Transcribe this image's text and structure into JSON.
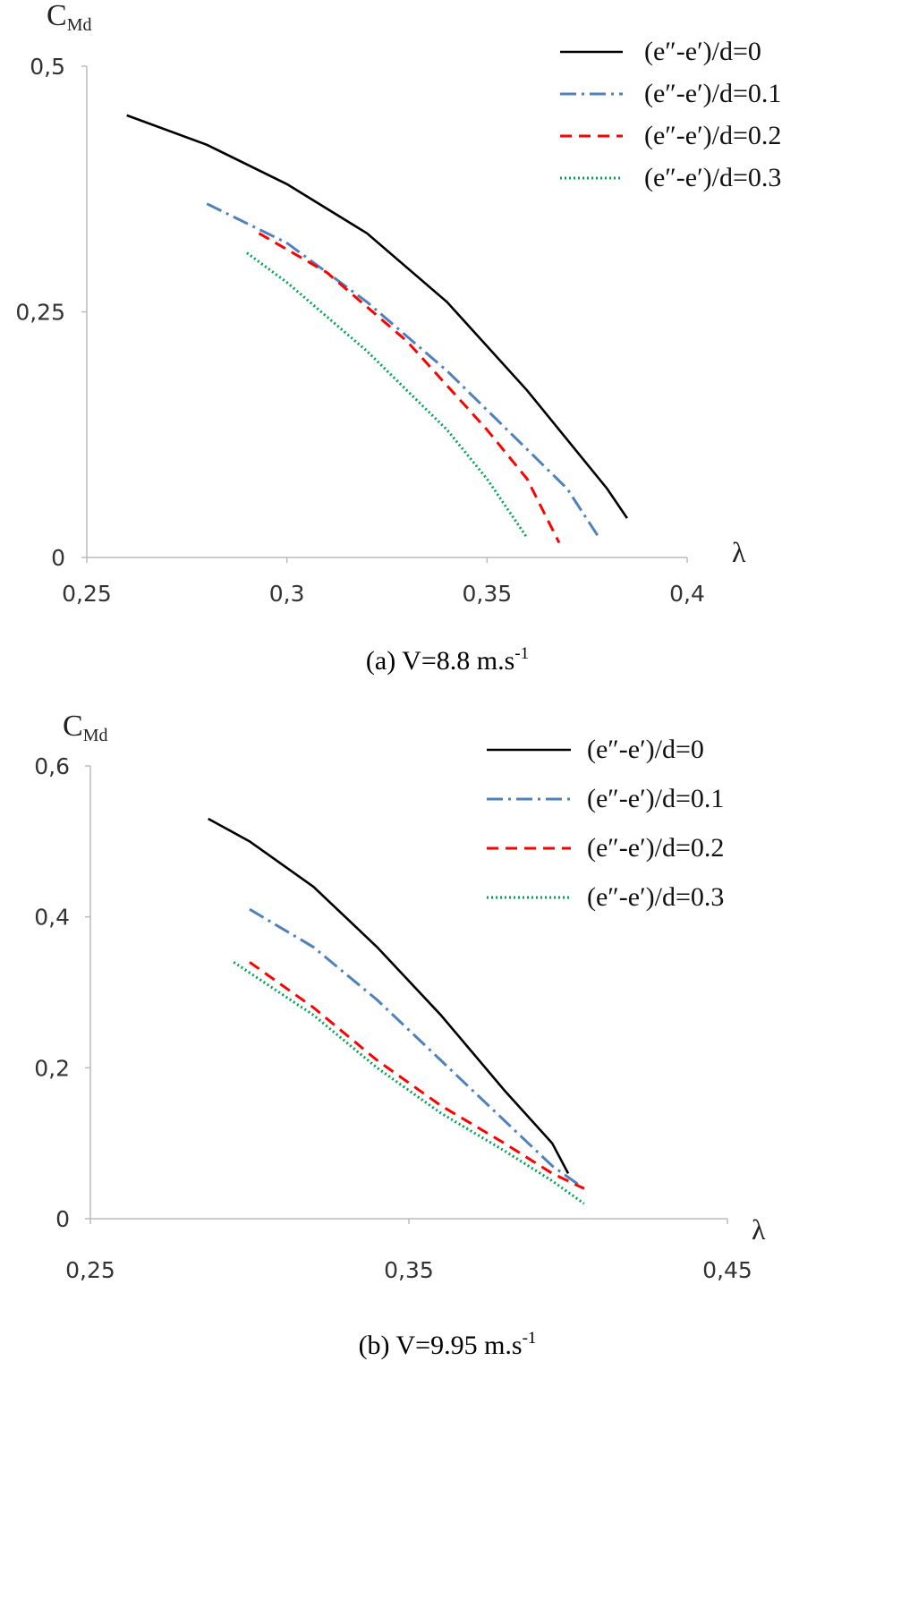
{
  "chart_data": [
    {
      "type": "line",
      "caption": "(a) V=8.8 m.s",
      "caption_sup": "-1",
      "ylabel": "C",
      "ylabel_sub": "Md",
      "xlabel": "λ",
      "xlim": [
        0.25,
        0.4
      ],
      "ylim": [
        0,
        0.5
      ],
      "xticks": [
        {
          "value": 0.25,
          "label": "0,25"
        },
        {
          "value": 0.3,
          "label": "0,3"
        },
        {
          "value": 0.35,
          "label": "0,35"
        },
        {
          "value": 0.4,
          "label": "0,4"
        }
      ],
      "yticks": [
        {
          "value": 0,
          "label": "0"
        },
        {
          "value": 0.25,
          "label": "0,25"
        },
        {
          "value": 0.5,
          "label": "0,5"
        }
      ],
      "legend_position": "top-right",
      "series": [
        {
          "name": "(e″-e′)/d=0",
          "color": "#000000",
          "dash": "solid",
          "x": [
            0.26,
            0.28,
            0.3,
            0.32,
            0.34,
            0.36,
            0.37,
            0.38,
            0.385
          ],
          "y": [
            0.45,
            0.42,
            0.38,
            0.33,
            0.26,
            0.17,
            0.12,
            0.07,
            0.04
          ]
        },
        {
          "name": "(e″-e′)/d=0.1",
          "color": "#4f81bd",
          "dash": "dashdot",
          "x": [
            0.28,
            0.3,
            0.32,
            0.34,
            0.36,
            0.37,
            0.378
          ],
          "y": [
            0.36,
            0.32,
            0.26,
            0.19,
            0.11,
            0.07,
            0.02
          ]
        },
        {
          "name": "(e″-e′)/d=0.2",
          "color": "#ff0000",
          "dash": "dash",
          "x": [
            0.293,
            0.31,
            0.33,
            0.35,
            0.36,
            0.368
          ],
          "y": [
            0.33,
            0.29,
            0.22,
            0.13,
            0.08,
            0.015
          ]
        },
        {
          "name": "(e″-e′)/d=0.3",
          "color": "#00a651",
          "dash": "dot",
          "x": [
            0.29,
            0.3,
            0.32,
            0.34,
            0.35,
            0.36
          ],
          "y": [
            0.31,
            0.28,
            0.21,
            0.13,
            0.08,
            0.02
          ]
        }
      ]
    },
    {
      "type": "line",
      "caption": "(b) V=9.95 m.s",
      "caption_sup": "-1",
      "ylabel": "C",
      "ylabel_sub": "Md",
      "xlabel": "λ",
      "xlim": [
        0.25,
        0.45
      ],
      "ylim": [
        0,
        0.6
      ],
      "xticks": [
        {
          "value": 0.25,
          "label": "0,25"
        },
        {
          "value": 0.35,
          "label": "0,35"
        },
        {
          "value": 0.45,
          "label": "0,45"
        }
      ],
      "yticks": [
        {
          "value": 0,
          "label": "0"
        },
        {
          "value": 0.2,
          "label": "0,2"
        },
        {
          "value": 0.4,
          "label": "0,4"
        },
        {
          "value": 0.6,
          "label": "0,6"
        }
      ],
      "legend_position": "top-right",
      "series": [
        {
          "name": "(e″-e′)/d=0",
          "color": "#000000",
          "dash": "solid",
          "x": [
            0.287,
            0.3,
            0.32,
            0.34,
            0.36,
            0.38,
            0.395,
            0.4
          ],
          "y": [
            0.53,
            0.5,
            0.44,
            0.36,
            0.27,
            0.17,
            0.1,
            0.06
          ]
        },
        {
          "name": "(e″-e′)/d=0.1",
          "color": "#4f81bd",
          "dash": "dashdot",
          "x": [
            0.3,
            0.32,
            0.34,
            0.36,
            0.38,
            0.395,
            0.405
          ],
          "y": [
            0.41,
            0.36,
            0.29,
            0.21,
            0.13,
            0.07,
            0.04
          ]
        },
        {
          "name": "(e″-e′)/d=0.2",
          "color": "#ff0000",
          "dash": "dash",
          "x": [
            0.3,
            0.32,
            0.34,
            0.36,
            0.38,
            0.395,
            0.405
          ],
          "y": [
            0.34,
            0.28,
            0.21,
            0.15,
            0.1,
            0.06,
            0.04
          ]
        },
        {
          "name": "(e″-e′)/d=0.3",
          "color": "#00a651",
          "dash": "dot",
          "x": [
            0.295,
            0.32,
            0.34,
            0.36,
            0.38,
            0.395,
            0.405
          ],
          "y": [
            0.34,
            0.27,
            0.2,
            0.14,
            0.09,
            0.05,
            0.02
          ]
        }
      ]
    }
  ]
}
